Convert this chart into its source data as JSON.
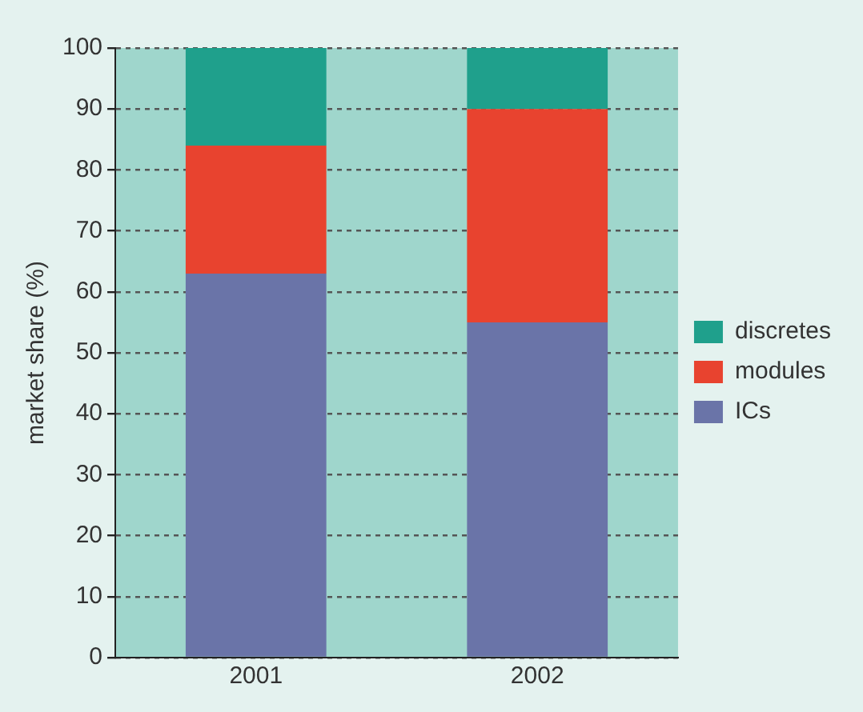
{
  "chart_data": {
    "type": "bar",
    "ylabel": "market share (%)",
    "categories": [
      "2001",
      "2002"
    ],
    "stacked": true,
    "series": [
      {
        "name": "ICs",
        "color": "#6a74a8",
        "values": [
          63,
          55
        ]
      },
      {
        "name": "modules",
        "color": "#e8432f",
        "values": [
          21,
          35
        ]
      },
      {
        "name": "discretes",
        "color": "#1fa08c",
        "values": [
          16,
          10
        ]
      }
    ],
    "ylim": [
      0,
      100
    ],
    "yticks": [
      0,
      10,
      20,
      30,
      40,
      50,
      60,
      70,
      80,
      90,
      100
    ],
    "grid": "y",
    "legend": "right"
  }
}
